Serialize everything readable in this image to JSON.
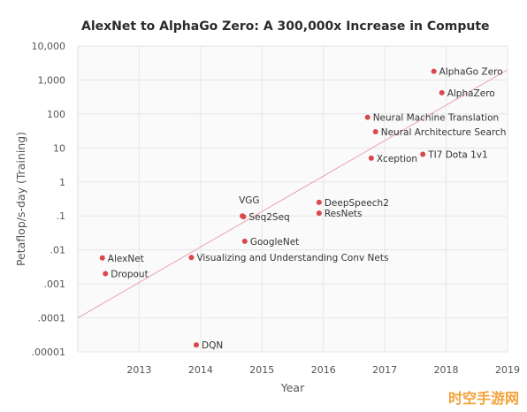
{
  "watermark": "时空手游网",
  "chart_data": {
    "type": "scatter",
    "title": "AlexNet to AlphaGo Zero: A 300,000x Increase in Compute",
    "xlabel": "Year",
    "ylabel": "Petaflop/s-day (Training)",
    "xlim": [
      2012.0,
      2019.0
    ],
    "ylim": [
      1e-05,
      10000
    ],
    "y_scale": "log",
    "x_ticks": [
      "2013",
      "2014",
      "2015",
      "2016",
      "2017",
      "2018",
      "2019"
    ],
    "y_ticks": [
      "10,000",
      "1,000",
      "100",
      "10",
      "1",
      ".1",
      ".01",
      ".001",
      ".0001",
      ".00001"
    ],
    "grid": true,
    "trend_line": {
      "x": [
        2012.0,
        2019.0
      ],
      "y": [
        0.0001,
        2000
      ]
    },
    "colors": {
      "point": "#d9484c",
      "trend": "#e9a3ad"
    },
    "points": [
      {
        "label": "AlexNet",
        "x": 2012.4,
        "y": 0.0058
      },
      {
        "label": "Dropout",
        "x": 2012.45,
        "y": 0.002
      },
      {
        "label": "Visualizing and Understanding Conv Nets",
        "x": 2013.85,
        "y": 0.006
      },
      {
        "label": "DQN",
        "x": 2013.93,
        "y": 1.6e-05
      },
      {
        "label": "VGG",
        "x": 2014.68,
        "y": 0.1
      },
      {
        "label": "Seq2Seq",
        "x": 2014.7,
        "y": 0.095
      },
      {
        "label": "GoogleNet",
        "x": 2014.72,
        "y": 0.018
      },
      {
        "label": "DeepSpeech2",
        "x": 2015.93,
        "y": 0.25
      },
      {
        "label": "ResNets",
        "x": 2015.93,
        "y": 0.12
      },
      {
        "label": "Neural Machine Translation",
        "x": 2016.72,
        "y": 80
      },
      {
        "label": "Neural Architecture Search",
        "x": 2016.85,
        "y": 30
      },
      {
        "label": "Xception",
        "x": 2016.78,
        "y": 5
      },
      {
        "label": "TI7 Dota 1v1",
        "x": 2017.62,
        "y": 6.5
      },
      {
        "label": "AlphaGo Zero",
        "x": 2017.8,
        "y": 1800
      },
      {
        "label": "AlphaZero",
        "x": 2017.93,
        "y": 420
      }
    ]
  }
}
